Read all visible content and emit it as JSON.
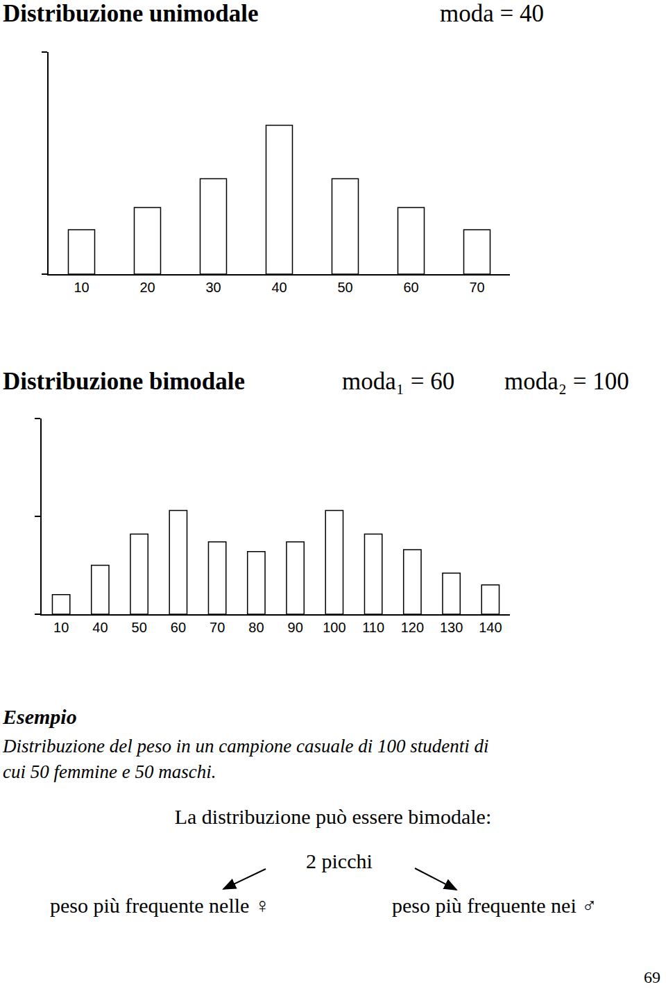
{
  "chart_data": [
    {
      "type": "bar",
      "title": "Distribuzione unimodale",
      "annotations": [
        "moda = 40"
      ],
      "categories": [
        "10",
        "20",
        "30",
        "40",
        "50",
        "60",
        "70"
      ],
      "values": [
        2.0,
        3.0,
        4.3,
        6.7,
        4.3,
        3.0,
        2.0
      ],
      "color": "#ffffff",
      "ylim": [
        0,
        10
      ],
      "yticks": [
        0,
        10
      ],
      "tick_labels": "x",
      "grid": false
    },
    {
      "type": "bar",
      "title": "Distribuzione bimodale",
      "annotations": [
        "moda₁ = 60",
        "moda₂ = 100"
      ],
      "categories": [
        "10",
        "40",
        "50",
        "60",
        "70",
        "80",
        "90",
        "100",
        "110",
        "120",
        "130",
        "140"
      ],
      "values": [
        1.0,
        2.5,
        4.1,
        5.3,
        3.7,
        3.2,
        3.7,
        5.3,
        4.1,
        3.3,
        2.1,
        1.5
      ],
      "color": "#ffffff",
      "ylim": [
        0,
        10
      ],
      "yticks": [
        0,
        5,
        10
      ],
      "tick_labels": "x",
      "grid": false
    }
  ],
  "example": {
    "heading": "Esempio",
    "text_lines": [
      "Distribuzione del peso in un campione casuale di 100 studenti di",
      "cui 50 femmine e 50 maschi."
    ],
    "note": "La distribuzione può essere bimodale:",
    "center": "2 picchi",
    "left": "peso più frequente nelle ♀",
    "right": "peso più frequente nei ♂"
  },
  "page_number": 69
}
